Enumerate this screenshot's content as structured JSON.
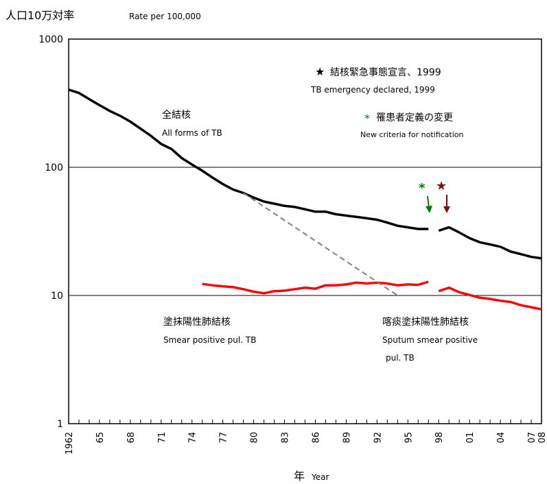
{
  "chart_data": {
    "type": "line",
    "title_ja": "人口10万対率",
    "title_en": "Rate per 100,000",
    "xlabel_ja": "年",
    "xlabel_en": "Year",
    "y_scale": "log",
    "ylim": [
      1,
      1000
    ],
    "y_ticks": [
      "1",
      "10",
      "100",
      "1000"
    ],
    "x_range": [
      1962,
      2008
    ],
    "x_tick_labels": [
      {
        "year": 1962,
        "label": "1962"
      },
      {
        "year": 1965,
        "label": "65"
      },
      {
        "year": 1968,
        "label": "68"
      },
      {
        "year": 1971,
        "label": "71"
      },
      {
        "year": 1974,
        "label": "74"
      },
      {
        "year": 1977,
        "label": "77"
      },
      {
        "year": 1980,
        "label": "80"
      },
      {
        "year": 1983,
        "label": "83"
      },
      {
        "year": 1986,
        "label": "86"
      },
      {
        "year": 1989,
        "label": "89"
      },
      {
        "year": 1992,
        "label": "92"
      },
      {
        "year": 1995,
        "label": "95"
      },
      {
        "year": 1998,
        "label": "98"
      },
      {
        "year": 2001,
        "label": "01"
      },
      {
        "year": 2004,
        "label": "04"
      },
      {
        "year": 2007,
        "label": "07"
      },
      {
        "year": 2008,
        "label": "08"
      }
    ],
    "grid": "horizontal at 10 and 100",
    "series": [
      {
        "name_ja": "全結核",
        "name_en": "All forms of TB",
        "color": "#000000",
        "segments": [
          [
            [
              1962,
              403
            ],
            [
              1963,
              380
            ],
            [
              1964,
              340
            ],
            [
              1965,
              305
            ],
            [
              1966,
              275
            ],
            [
              1967,
              252
            ],
            [
              1968,
              227
            ],
            [
              1969,
              200
            ],
            [
              1970,
              176
            ],
            [
              1971,
              152
            ],
            [
              1972,
              139
            ],
            [
              1973,
              118
            ],
            [
              1974,
              105
            ],
            [
              1975,
              94
            ],
            [
              1976,
              83
            ],
            [
              1977,
              74
            ],
            [
              1978,
              67
            ],
            [
              1979,
              63
            ],
            [
              1980,
              58
            ],
            [
              1981,
              54
            ],
            [
              1982,
              52
            ],
            [
              1983,
              50
            ],
            [
              1984,
              49
            ],
            [
              1985,
              47
            ],
            [
              1986,
              45
            ],
            [
              1987,
              45
            ],
            [
              1988,
              43
            ],
            [
              1989,
              42
            ],
            [
              1990,
              41
            ],
            [
              1991,
              40
            ],
            [
              1992,
              39
            ],
            [
              1993,
              37
            ],
            [
              1994,
              35
            ],
            [
              1995,
              34
            ],
            [
              1996,
              33
            ],
            [
              1997,
              33
            ]
          ],
          [
            [
              1998,
              32
            ],
            [
              1999,
              34
            ],
            [
              2000,
              31
            ],
            [
              2001,
              28
            ],
            [
              2002,
              26
            ],
            [
              2003,
              25
            ],
            [
              2004,
              24
            ],
            [
              2005,
              22
            ],
            [
              2006,
              21
            ],
            [
              2007,
              20
            ],
            [
              2008,
              19.5
            ]
          ]
        ]
      },
      {
        "name_ja": "塗抹陽性肺結核",
        "name_en": "Smear positive pul. TB",
        "color": "#ff0000",
        "segments": [
          [
            [
              1975,
              12.3
            ],
            [
              1976,
              12.0
            ],
            [
              1977,
              11.8
            ],
            [
              1978,
              11.6
            ],
            [
              1979,
              11.2
            ],
            [
              1980,
              10.7
            ],
            [
              1981,
              10.4
            ],
            [
              1982,
              10.8
            ],
            [
              1983,
              10.9
            ],
            [
              1984,
              11.2
            ],
            [
              1985,
              11.5
            ],
            [
              1986,
              11.3
            ],
            [
              1987,
              12.0
            ],
            [
              1988,
              12.0
            ],
            [
              1989,
              12.2
            ],
            [
              1990,
              12.6
            ],
            [
              1991,
              12.4
            ],
            [
              1992,
              12.6
            ],
            [
              1993,
              12.4
            ],
            [
              1994,
              12.0
            ],
            [
              1995,
              12.2
            ],
            [
              1996,
              12.1
            ],
            [
              1997,
              12.8
            ]
          ]
        ]
      },
      {
        "name_ja": "喀痰塗抹陽性肺結核",
        "name_en": "Sputum smear positive pul. TB",
        "color": "#ff0000",
        "segments": [
          [
            [
              1998,
              10.8
            ],
            [
              1999,
              11.5
            ],
            [
              2000,
              10.6
            ],
            [
              2001,
              10.1
            ],
            [
              2002,
              9.6
            ],
            [
              2003,
              9.4
            ],
            [
              2004,
              9.1
            ],
            [
              2005,
              8.9
            ],
            [
              2006,
              8.4
            ],
            [
              2007,
              8.1
            ],
            [
              2008,
              7.8
            ]
          ]
        ]
      },
      {
        "name": "",
        "color": "#808080",
        "dashed": true,
        "segments": [
          [
            [
              1979,
              63
            ],
            [
              1994,
              10
            ]
          ]
        ]
      }
    ],
    "annotations": [
      {
        "symbol": "★",
        "text_ja": "結核緊急事態宣言、1999",
        "text_en": "TB emergency declared, 1999",
        "color": "#7b1010",
        "year": 1999
      },
      {
        "symbol": "*",
        "text_ja": "罹患者定義の変更",
        "text_en": "New criteria for notification",
        "color": "#008000",
        "year": 1998
      }
    ]
  }
}
